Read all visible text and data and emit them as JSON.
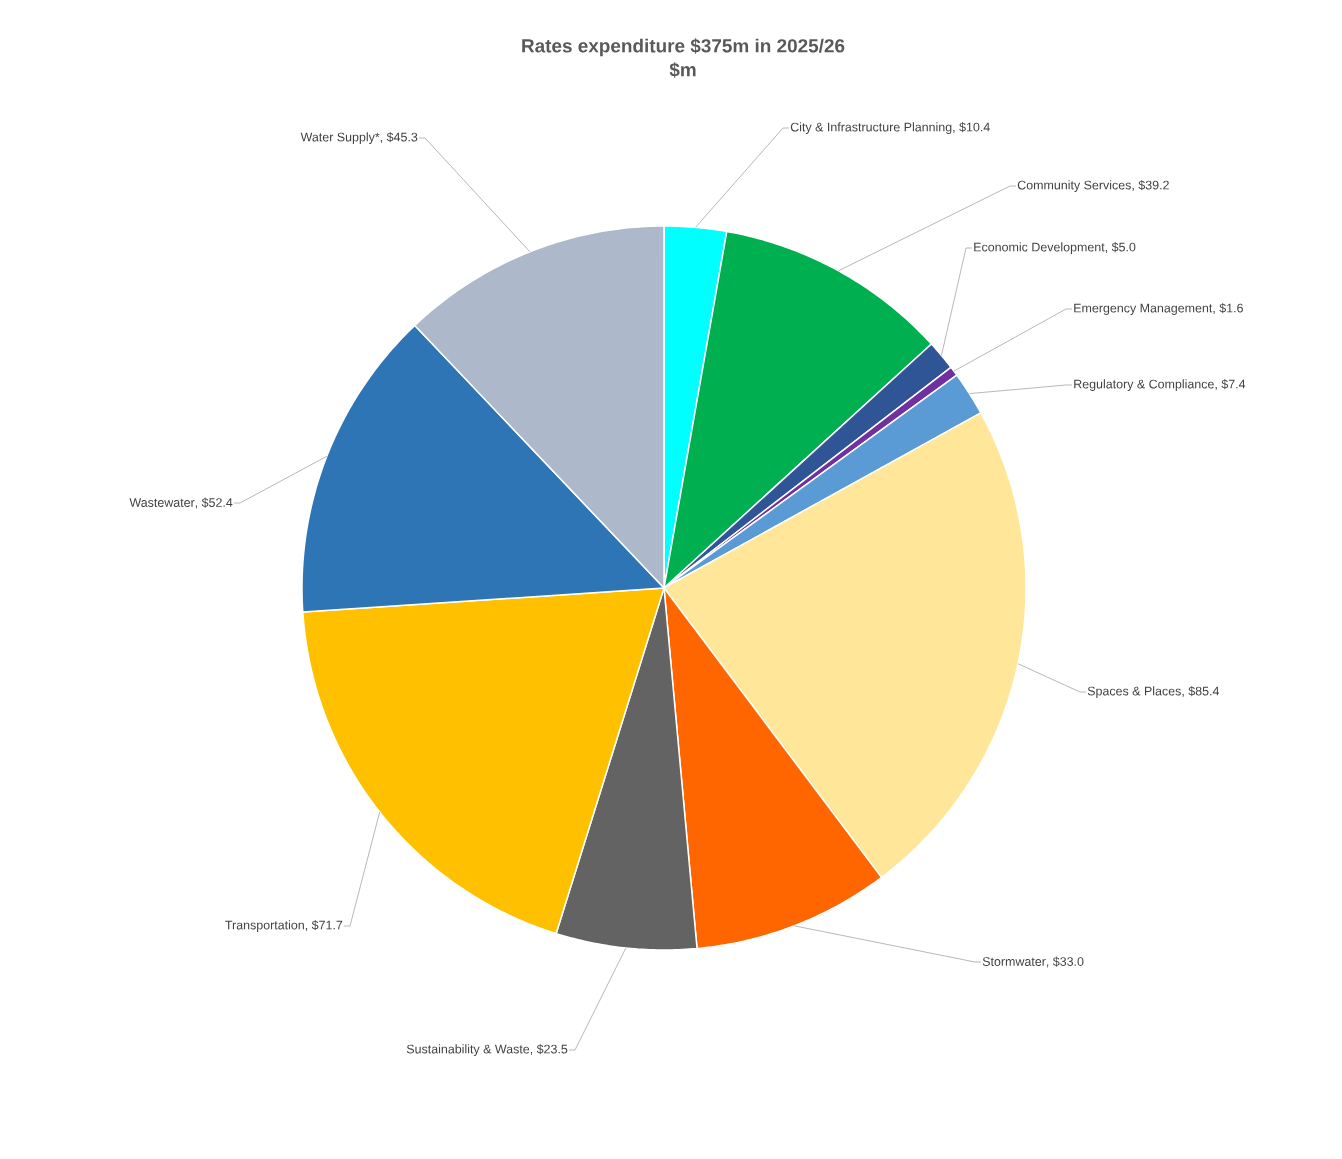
{
  "chart_data": {
    "type": "pie",
    "title": "Rates expenditure $375m in 2025/26",
    "subtitle": "$m",
    "categories": [
      "City & Infrastructure Planning",
      "Community Services",
      "Economic Development",
      "Emergency Management",
      "Regulatory & Compliance",
      "Spaces & Places",
      "Stormwater",
      "Sustainability & Waste",
      "Transportation",
      "Wastewater",
      "Water Supply*"
    ],
    "values": [
      10.4,
      39.2,
      5.0,
      1.6,
      7.4,
      85.4,
      33.0,
      23.5,
      71.7,
      52.4,
      45.3
    ],
    "value_labels": [
      ", $10.4",
      ", $39.2",
      ", $5.0",
      ", $1.6",
      ", $7.4",
      ", $85.4",
      ", $33.0",
      ", $23.5",
      ", $71.7",
      ", $52.4",
      ", $45.3"
    ],
    "colors": [
      "#00ffff",
      "#00b050",
      "#2f5597",
      "#7030a0",
      "#5b9bd5",
      "#ffe699",
      "#ff6600",
      "#636363",
      "#ffc000",
      "#2e75b6",
      "#adb9ca"
    ]
  }
}
